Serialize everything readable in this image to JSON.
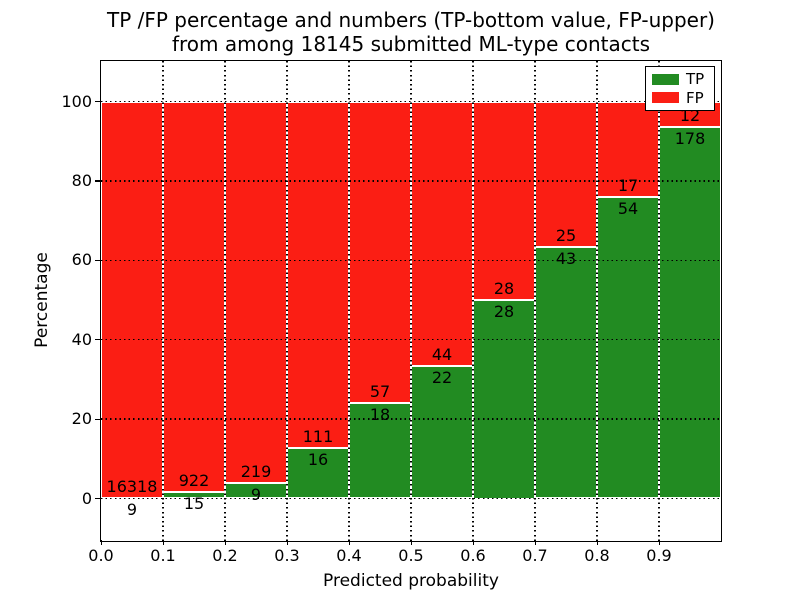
{
  "figure": {
    "title_line1": "TP /FP percentage and numbers (TP-bottom value, FP-upper)",
    "title_line2": "from among 18145 submitted ML-type contacts",
    "xlabel": "Predicted probability",
    "ylabel": "Percentage"
  },
  "legend": {
    "items": [
      {
        "label": "TP",
        "color": "#228b22"
      },
      {
        "label": "FP",
        "color": "#fb1e14"
      }
    ]
  },
  "chart_data": {
    "type": "bar",
    "stacked": true,
    "normalized": "each bin scaled to 100%",
    "title": "TP /FP percentage and numbers (TP-bottom value, FP-upper) from among 18145 submitted ML-type contacts",
    "xlabel": "Predicted probability",
    "ylabel": "Percentage",
    "x_tick_labels": [
      "0.0",
      "0.1",
      "0.2",
      "0.3",
      "0.4",
      "0.5",
      "0.6",
      "0.7",
      "0.8",
      "0.9"
    ],
    "y_ticks": [
      0,
      20,
      40,
      60,
      80,
      100
    ],
    "y_tick_labels": [
      "0",
      "20",
      "40",
      "60",
      "80",
      "100"
    ],
    "xlim": [
      0.0,
      1.0
    ],
    "ylim": [
      -11,
      110
    ],
    "grid": "dotted black, drawn above bars",
    "legend_position": "upper right",
    "bin_width": 0.1,
    "series": [
      {
        "name": "TP",
        "color": "#228b22"
      },
      {
        "name": "FP",
        "color": "#fb1e14"
      }
    ],
    "bins": [
      {
        "x_start": 0.0,
        "tp": 9,
        "fp": 16318
      },
      {
        "x_start": 0.1,
        "tp": 15,
        "fp": 922
      },
      {
        "x_start": 0.2,
        "tp": 9,
        "fp": 219
      },
      {
        "x_start": 0.3,
        "tp": 16,
        "fp": 111
      },
      {
        "x_start": 0.4,
        "tp": 18,
        "fp": 57
      },
      {
        "x_start": 0.5,
        "tp": 22,
        "fp": 44
      },
      {
        "x_start": 0.6,
        "tp": 28,
        "fp": 28
      },
      {
        "x_start": 0.7,
        "tp": 43,
        "fp": 25
      },
      {
        "x_start": 0.8,
        "tp": 54,
        "fp": 17
      },
      {
        "x_start": 0.9,
        "tp": 178,
        "fp": 12
      }
    ],
    "annotation_layout": "FP count printed just above TP/FP boundary, TP count just below it",
    "total_contacts": 18145
  }
}
